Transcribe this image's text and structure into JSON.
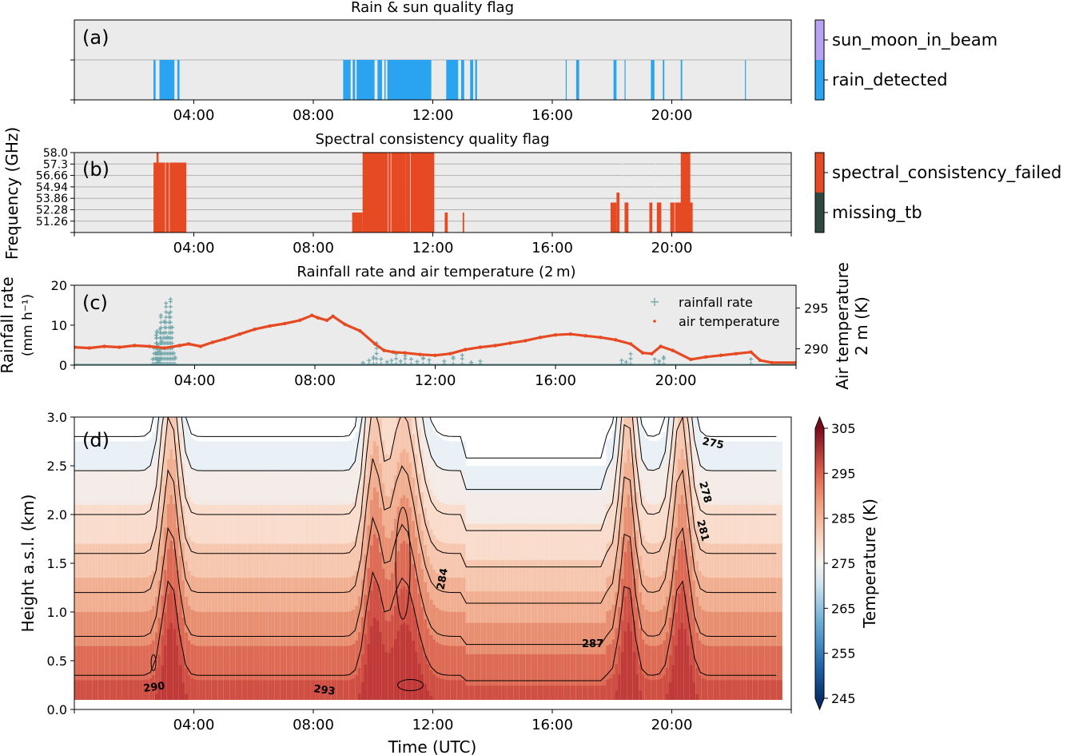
{
  "chart_data": [
    {
      "type": "bar",
      "panel_label": "(a)",
      "title": "Rain & sun quality flag",
      "x_domain_hours": [
        0,
        24
      ],
      "x_ticks": [
        "04:00",
        "08:00",
        "12:00",
        "16:00",
        "20:00"
      ],
      "x_tick_hours": [
        4,
        8,
        12,
        16,
        20
      ],
      "legend": [
        "sun_moon_in_beam",
        "rain_detected"
      ],
      "colors": {
        "rain_detected": "#2aa4f0",
        "sun_moon_in_beam": "#b8a2f2",
        "background": "#ebebeb"
      },
      "rain_detected_intervals_hours": [
        [
          2.65,
          2.72
        ],
        [
          2.85,
          3.35
        ],
        [
          3.45,
          3.52
        ],
        [
          9.0,
          9.25
        ],
        [
          9.32,
          9.4
        ],
        [
          9.45,
          10.05
        ],
        [
          10.15,
          10.3
        ],
        [
          10.38,
          10.42
        ],
        [
          10.48,
          11.95
        ],
        [
          12.45,
          12.85
        ],
        [
          12.95,
          13.05
        ],
        [
          13.25,
          13.35
        ],
        [
          13.42,
          13.48
        ],
        [
          16.45,
          16.48
        ],
        [
          16.8,
          16.9
        ],
        [
          18.05,
          18.15
        ],
        [
          18.42,
          18.45
        ],
        [
          19.3,
          19.42
        ],
        [
          19.7,
          19.75
        ],
        [
          20.3,
          20.35
        ],
        [
          22.45,
          22.48
        ]
      ]
    },
    {
      "type": "heatmap",
      "panel_label": "(b)",
      "title": "Spectral consistency quality flag",
      "ylabel": "Frequency (GHz)",
      "y_ticks": [
        "58.0",
        "57.3",
        "56.66",
        "54.94",
        "53.86",
        "52.28",
        "51.26"
      ],
      "x_ticks": [
        "04:00",
        "08:00",
        "12:00",
        "16:00",
        "20:00"
      ],
      "legend": [
        "spectral_consistency_failed",
        "missing_tb"
      ],
      "colors": {
        "spectral_consistency_failed": "#e64a22",
        "missing_tb": "#2e4a40",
        "background": "#ebebeb"
      },
      "failed_blocks": [
        [
          2.65,
          3.75,
          0,
          7
        ],
        [
          2.75,
          2.82,
          7,
          8
        ],
        [
          9.3,
          9.65,
          0,
          2
        ],
        [
          9.65,
          11.1,
          0,
          8
        ],
        [
          11.1,
          12.05,
          0,
          8
        ],
        [
          12.4,
          12.5,
          0,
          2
        ],
        [
          13.0,
          13.05,
          0,
          2
        ],
        [
          17.95,
          18.15,
          0,
          3
        ],
        [
          18.15,
          18.25,
          0,
          4
        ],
        [
          18.42,
          18.55,
          0,
          3
        ],
        [
          19.25,
          19.35,
          0,
          3
        ],
        [
          19.5,
          19.65,
          0,
          3
        ],
        [
          19.95,
          20.7,
          0,
          3
        ],
        [
          20.3,
          20.62,
          3,
          8
        ]
      ]
    },
    {
      "type": "scatter",
      "panel_label": "(c)",
      "title": "Rainfall rate and air temperature (2 m)",
      "ylabel": "Rainfall rate\n(mm h⁻¹)",
      "ylabel_right": "Air temperature\n2 m (K)",
      "ylim": [
        0,
        20
      ],
      "ylim_right": [
        288.0,
        297.8
      ],
      "y_ticks": [
        "0",
        "10",
        "20"
      ],
      "y_ticks_right": [
        "290",
        "295"
      ],
      "x_ticks": [
        "04:00",
        "08:00",
        "12:00",
        "16:00",
        "20:00"
      ],
      "series": [
        {
          "name": "rainfall rate",
          "marker": "+",
          "color": "#72a7aa",
          "x": [
            2.6,
            2.65,
            2.7,
            2.72,
            2.75,
            2.78,
            2.8,
            2.82,
            2.85,
            2.88,
            2.9,
            2.95,
            3.0,
            3.05,
            3.1,
            3.15,
            3.2,
            3.25,
            3.3,
            3.35,
            9.6,
            9.8,
            9.95,
            10.05,
            10.2,
            10.4,
            10.55,
            10.7,
            10.85,
            11.0,
            11.2,
            11.4,
            11.6,
            11.8,
            12.3,
            12.6,
            12.9,
            13.2,
            13.5,
            18.2,
            18.35,
            18.5,
            19.3,
            19.45,
            19.6,
            22.5
          ],
          "y": [
            1.5,
            4.5,
            3.0,
            7.5,
            8.5,
            5.0,
            1.0,
            3.5,
            9.0,
            12.5,
            6.0,
            8.0,
            11.0,
            15.5,
            7.0,
            13.0,
            16.5,
            9.5,
            3.0,
            2.0,
            0.6,
            1.2,
            2.0,
            5.5,
            1.5,
            0.8,
            1.2,
            2.8,
            1.0,
            2.3,
            1.5,
            0.9,
            1.8,
            1.3,
            1.0,
            2.0,
            2.5,
            0.7,
            1.0,
            1.2,
            0.8,
            2.8,
            1.5,
            1.0,
            2.0,
            1.5
          ]
        },
        {
          "name": "air temperature",
          "marker": ".",
          "color": "#e64a22",
          "x": [
            0,
            0.5,
            1,
            1.5,
            2,
            2.5,
            3,
            3.5,
            3.8,
            4.2,
            4.6,
            5,
            5.5,
            6,
            6.5,
            7,
            7.5,
            7.9,
            8.1,
            8.4,
            8.6,
            9,
            9.5,
            10,
            10.3,
            10.6,
            11,
            11.5,
            12,
            12.5,
            13,
            13.5,
            14,
            14.5,
            15,
            15.5,
            16,
            16.5,
            17,
            17.5,
            18,
            18.5,
            18.9,
            19.2,
            19.5,
            19.9,
            20.5,
            21,
            21.5,
            22,
            22.5,
            22.8,
            23.2,
            24
          ],
          "y": [
            290.2,
            290.1,
            290.3,
            290.2,
            290.4,
            290.3,
            290.1,
            290.4,
            290.6,
            290.3,
            290.8,
            291.2,
            291.8,
            292.4,
            292.8,
            293.1,
            293.5,
            294.1,
            293.8,
            293.5,
            294.0,
            293.0,
            292.2,
            290.6,
            289.8,
            289.6,
            289.5,
            289.3,
            289.2,
            289.4,
            289.9,
            290.2,
            290.4,
            290.7,
            291.0,
            291.4,
            291.7,
            291.8,
            291.6,
            291.4,
            291.1,
            290.6,
            289.5,
            289.4,
            290.3,
            289.8,
            288.7,
            289.0,
            289.2,
            289.4,
            289.6,
            288.6,
            288.3,
            288.3
          ]
        }
      ]
    },
    {
      "type": "heatmap",
      "panel_label": "(d)",
      "xlabel": "Time (UTC)",
      "ylabel": "Height a.s.l. (km)",
      "ylim": [
        0.0,
        3.0
      ],
      "y_ticks": [
        "0.0",
        "0.5",
        "1.0",
        "1.5",
        "2.0",
        "2.5",
        "3.0"
      ],
      "x_ticks": [
        "04:00",
        "08:00",
        "12:00",
        "16:00",
        "20:00"
      ],
      "colorbar": {
        "label": "Temperature (K)",
        "range": [
          245,
          305
        ],
        "ticks": [
          "305",
          "295",
          "285",
          "275",
          "265",
          "255",
          "245"
        ]
      },
      "contour_labels": [
        "275",
        "278",
        "281",
        "284",
        "287",
        "290",
        "293"
      ]
    }
  ]
}
